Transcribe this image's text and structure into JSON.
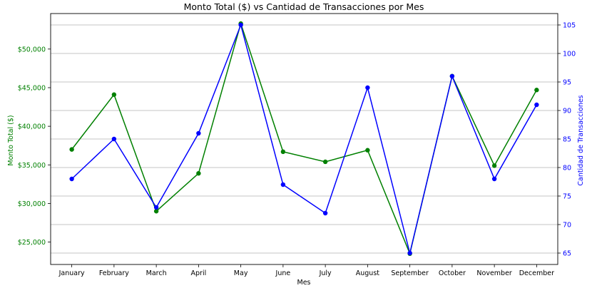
{
  "chart_data": {
    "type": "line",
    "title": "Monto Total ($) vs Cantidad de Transacciones por Mes",
    "xlabel": "Mes",
    "ylabel_left": "Monto Total ($)",
    "ylabel_right": "Cantidad de Transacciones",
    "categories": [
      "January",
      "February",
      "March",
      "April",
      "May",
      "June",
      "July",
      "August",
      "September",
      "October",
      "November",
      "December"
    ],
    "left_axis": {
      "ylim": [
        22100,
        54600
      ],
      "ticks": [
        25000,
        30000,
        35000,
        40000,
        45000,
        50000
      ],
      "tick_labels": [
        "$25,000",
        "$30,000",
        "$35,000",
        "$40,000",
        "$45,000",
        "$50,000"
      ],
      "color": "#008000"
    },
    "right_axis": {
      "ylim": [
        63,
        107
      ],
      "ticks": [
        65,
        70,
        75,
        80,
        85,
        90,
        95,
        100,
        105
      ],
      "tick_labels": [
        "65",
        "70",
        "75",
        "80",
        "85",
        "90",
        "95",
        "100",
        "105"
      ],
      "color": "#0000ff"
    },
    "grid": true,
    "series": [
      {
        "axis": "left",
        "color": "#008000",
        "values": [
          37000,
          44100,
          29000,
          33900,
          53300,
          36700,
          35400,
          36900,
          23500,
          46500,
          34900,
          44700
        ]
      },
      {
        "axis": "right",
        "color": "#0000ff",
        "values": [
          78,
          85,
          73,
          86,
          105,
          77,
          72,
          94,
          65,
          96,
          78,
          91
        ]
      }
    ]
  }
}
